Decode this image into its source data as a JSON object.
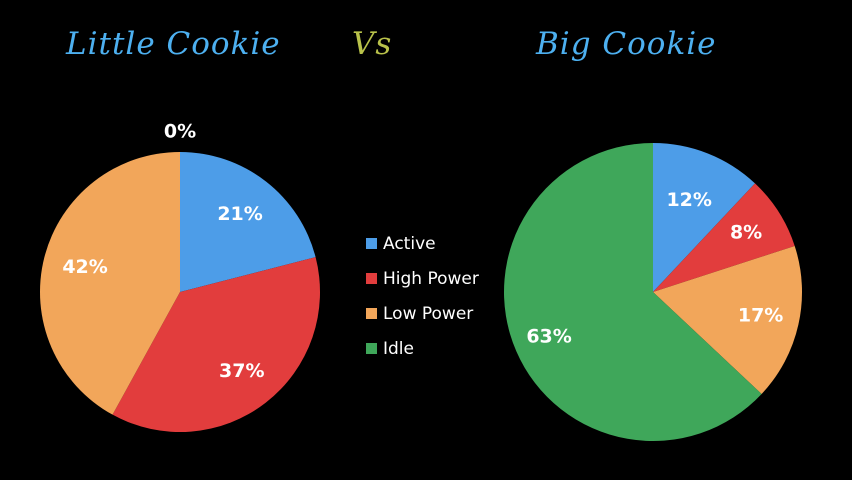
{
  "titles": {
    "left": "Little Cookie",
    "vs": "Vs",
    "right": "Big Cookie",
    "left_color": "#4db0f0",
    "vs_color": "#b9c24a",
    "right_color": "#4db0f0"
  },
  "legend": [
    {
      "label": "Active",
      "color": "#4d9de8"
    },
    {
      "label": "High Power",
      "color": "#e23d3d"
    },
    {
      "label": "Low Power",
      "color": "#f2a65a"
    },
    {
      "label": "Idle",
      "color": "#3fa75a"
    }
  ],
  "chart_data": [
    {
      "type": "pie",
      "title": "Little Cookie",
      "categories": [
        "Active",
        "High Power",
        "Low Power",
        "Idle"
      ],
      "values": [
        21,
        37,
        42,
        0
      ],
      "labels": [
        "21%",
        "37%",
        "42%",
        "0%"
      ]
    },
    {
      "type": "pie",
      "title": "Big Cookie",
      "categories": [
        "Active",
        "High Power",
        "Low Power",
        "Idle"
      ],
      "values": [
        12,
        8,
        17,
        63
      ],
      "labels": [
        "12%",
        "8%",
        "17%",
        "63%"
      ]
    }
  ]
}
